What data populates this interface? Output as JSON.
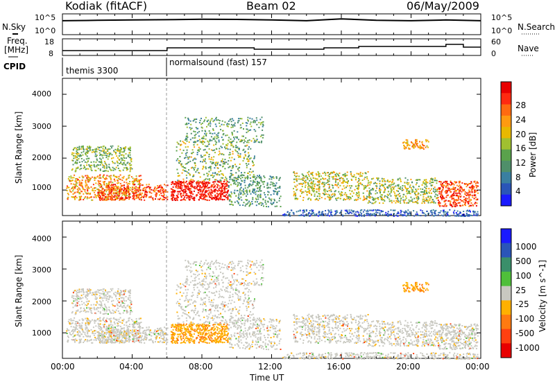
{
  "header": {
    "station": "Kodiak (fitACF)",
    "beam": "Beam 02",
    "date": "06/May/2009"
  },
  "top_panel": {
    "left_label": "N.Sky",
    "right_label": "N.Search",
    "left_ticks": [
      "10^5",
      "10^0"
    ],
    "right_ticks": [
      "10^5",
      "10^0"
    ]
  },
  "freq_panel": {
    "left_label_1": "Freq.",
    "left_label_2": "[MHz]",
    "left_ticks": [
      "18",
      "8"
    ],
    "right_label": "Nave",
    "right_ticks": [
      "60",
      "0"
    ]
  },
  "cpid": {
    "label": "CPID",
    "programs": [
      {
        "name": "themis 3300",
        "start_hour": 0
      },
      {
        "name": "normalsound (fast) 157",
        "start_hour": 6
      }
    ]
  },
  "power_panel": {
    "ylabel": "Slant Range [km]",
    "yticks": [
      "1000",
      "2000",
      "3000",
      "4000"
    ],
    "colorbar_label": "Power [dB]",
    "colorbar_ticks": [
      "4",
      "8",
      "12",
      "16",
      "20",
      "24",
      "28"
    ],
    "colors": [
      "#1a1aff",
      "#2a55b8",
      "#3a7fa0",
      "#4f8f6a",
      "#5aa24c",
      "#a0c030",
      "#e8b800",
      "#ff9a10",
      "#ff6a10",
      "#ff2a10",
      "#e80000"
    ]
  },
  "velocity_panel": {
    "ylabel": "Slant Range [km]",
    "yticks": [
      "1000",
      "2000",
      "3000",
      "4000"
    ],
    "colorbar_label": "Velocity [m s^-1]",
    "colorbar_ticks": [
      "1000",
      "500",
      "100",
      "25",
      "-25",
      "-100",
      "-500",
      "-1000"
    ],
    "colors": [
      "#1a1aff",
      "#2a55b8",
      "#3a8f6a",
      "#4fbf3a",
      "#c8c8c0",
      "#ffb000",
      "#ff7a10",
      "#ff4010",
      "#e80000"
    ]
  },
  "x_axis": {
    "label": "Time UT",
    "ticks": [
      "00:00",
      "04:00",
      "08:00",
      "12:00",
      "16:00",
      "20:00",
      "00:00"
    ]
  },
  "chart_data": [
    {
      "type": "line",
      "title": "",
      "series": [
        {
          "name": "N.Sky",
          "x": [
            0,
            2,
            4,
            6,
            8,
            10,
            12,
            14,
            16,
            18,
            20,
            22,
            24
          ],
          "y": [
            3000,
            4000,
            5000,
            6000,
            8000,
            7000,
            5000,
            3000,
            10000,
            4000,
            3000,
            5000,
            3000
          ]
        }
      ],
      "xlim": [
        0,
        24
      ]
    },
    {
      "type": "line",
      "title": "",
      "series": [
        {
          "name": "Freq.",
          "x": [
            0,
            6,
            6,
            11,
            11,
            15,
            15,
            17,
            17,
            22,
            22,
            23,
            23,
            24
          ],
          "y": [
            10.5,
            10.5,
            12.5,
            12.5,
            11.5,
            11.5,
            12.5,
            12.5,
            13.5,
            13.5,
            15,
            15,
            13,
            13
          ]
        }
      ],
      "xlim": [
        0,
        24
      ],
      "ylim": [
        8,
        18
      ]
    },
    {
      "type": "heatmap",
      "title": "",
      "xlabel": "Time UT",
      "ylabel": "Slant Range [km]",
      "colorbar": "Power [dB]",
      "xlim": [
        0,
        24
      ],
      "ylim": [
        200,
        4500
      ],
      "zlim": [
        0,
        30
      ]
    },
    {
      "type": "heatmap",
      "title": "",
      "xlabel": "Time UT",
      "ylabel": "Slant Range [km]",
      "colorbar": "Velocity [m s^-1]",
      "xlim": [
        0,
        24
      ],
      "ylim": [
        200,
        4500
      ]
    }
  ]
}
